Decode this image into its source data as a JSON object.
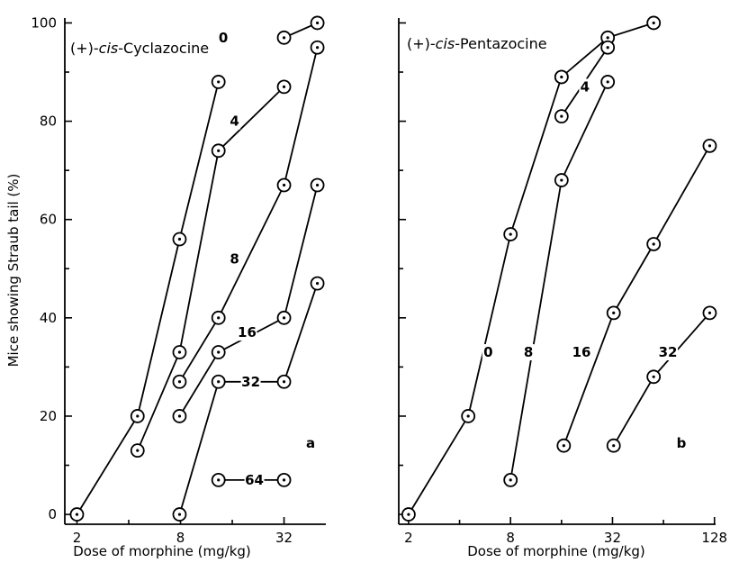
{
  "ylabel": "Mice showing Straub tail (%)",
  "chart_data": [
    {
      "type": "line",
      "panel_letter": "a",
      "title_prefix": "(+)-",
      "title_italic": "cis",
      "title_suffix": "-Cyclazocine",
      "xlabel": "Dose of morphine (mg/kg)",
      "ylabel": "Mice showing Straub tail (%)",
      "x_scale": "log2",
      "xlim": [
        1.7,
        56
      ],
      "ylim": [
        -2,
        101
      ],
      "x_ticks": [
        2,
        8,
        32
      ],
      "x_tick_labels": [
        "2",
        "8",
        "32"
      ],
      "y_ticks": [
        0,
        20,
        40,
        60,
        80,
        100
      ],
      "y_tick_labels": [
        "0",
        "20",
        "40",
        "60",
        "80",
        "100"
      ],
      "y_minor_ticks": [
        10,
        30,
        50,
        70,
        90
      ],
      "series": [
        {
          "label": "0",
          "x": [
            2,
            4.5,
            7.9,
            13.3
          ],
          "y": [
            0,
            20,
            56,
            88
          ]
        },
        {
          "label": "4",
          "x": [
            4.5,
            7.9,
            13.3,
            32
          ],
          "y": [
            13,
            33,
            74,
            87
          ]
        },
        {
          "label": "8",
          "x": [
            7.9,
            13.3,
            32,
            50
          ],
          "y": [
            27,
            40,
            67,
            95
          ]
        },
        {
          "label": "16",
          "x": [
            7.9,
            13.3,
            32,
            50
          ],
          "y": [
            20,
            33,
            40,
            67
          ]
        },
        {
          "label": "32",
          "x": [
            7.9,
            13.3,
            32,
            50
          ],
          "y": [
            0,
            27,
            27,
            47
          ]
        },
        {
          "label": "64",
          "x": [
            13.3,
            32
          ],
          "y": [
            7,
            7
          ]
        },
        {
          "label": "",
          "x": [
            32,
            50
          ],
          "y": [
            97,
            100
          ]
        }
      ],
      "series_labels": [
        {
          "text": "0",
          "x": 14.2,
          "y": 97
        },
        {
          "text": "4",
          "x": 16.5,
          "y": 80
        },
        {
          "text": "8",
          "x": 16.5,
          "y": 52
        },
        {
          "text": "16",
          "x": 19.5,
          "y": 37
        },
        {
          "text": "32",
          "x": 20.5,
          "y": 27
        },
        {
          "text": "64",
          "x": 21.5,
          "y": 7
        }
      ]
    },
    {
      "type": "line",
      "panel_letter": "b",
      "title_prefix": "(+)-",
      "title_italic": "cis",
      "title_suffix": "-Pentazocine",
      "xlabel": "Dose of morphine (mg/kg)",
      "ylabel": "",
      "x_scale": "log2",
      "xlim": [
        1.75,
        130
      ],
      "ylim": [
        -2,
        101
      ],
      "x_ticks": [
        2,
        8,
        32,
        128
      ],
      "x_tick_labels": [
        "2",
        "8",
        "32",
        "128"
      ],
      "y_ticks": [
        0,
        20,
        40,
        60,
        80,
        100
      ],
      "y_tick_labels": [],
      "y_minor_ticks": [
        10,
        30,
        50,
        70,
        90
      ],
      "series": [
        {
          "label": "0",
          "x": [
            2,
            4.5,
            8,
            16
          ],
          "y": [
            0,
            20,
            57,
            89
          ]
        },
        {
          "label": "",
          "x": [
            16,
            30,
            56
          ],
          "y": [
            89,
            97,
            100
          ]
        },
        {
          "label": "4",
          "x": [
            16,
            30
          ],
          "y": [
            81,
            95
          ]
        },
        {
          "label": "8",
          "x": [
            8,
            16,
            30
          ],
          "y": [
            7,
            68,
            88
          ]
        },
        {
          "label": "16",
          "x": [
            16.5,
            32.5,
            56,
            120
          ],
          "y": [
            14,
            41,
            55,
            75
          ]
        },
        {
          "label": "32",
          "x": [
            32.5,
            56,
            120
          ],
          "y": [
            14,
            28,
            41
          ]
        }
      ],
      "series_labels": [
        {
          "text": "0",
          "x": 5.9,
          "y": 33
        },
        {
          "text": "8",
          "x": 10.2,
          "y": 33
        },
        {
          "text": "4",
          "x": 22,
          "y": 87
        },
        {
          "text": "16",
          "x": 21,
          "y": 33
        },
        {
          "text": "32",
          "x": 68,
          "y": 33
        }
      ]
    }
  ]
}
